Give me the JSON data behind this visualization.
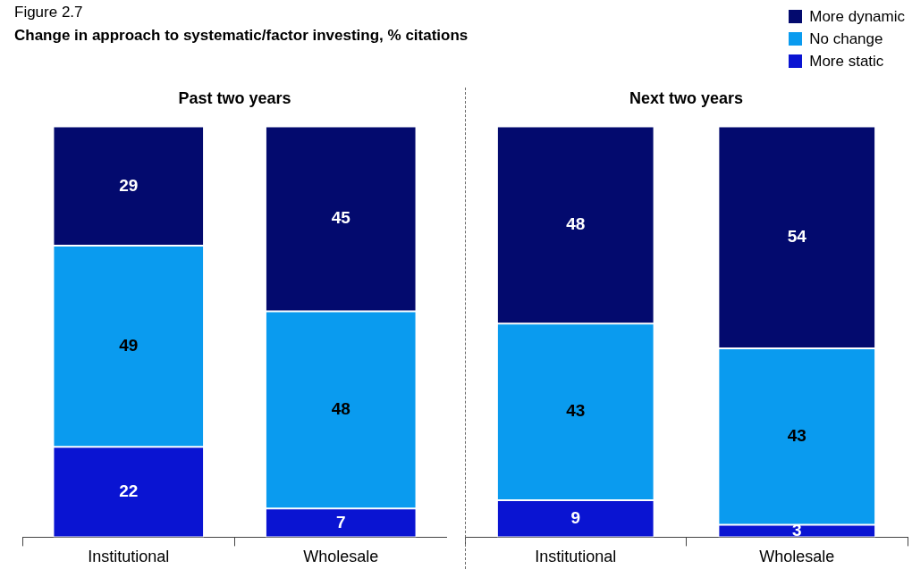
{
  "chart_data": [
    {
      "type": "other",
      "title": "Change in approach to systematic/factor investing, % citations",
      "annotations": [
        "Figure 2.7"
      ]
    },
    {
      "type": "bar",
      "title": "Past two years",
      "stacked": true,
      "data_labels": true,
      "legend": false,
      "grid": false,
      "tick_labels": "x",
      "categories": [
        "Institutional",
        "Wholesale"
      ],
      "series": [
        {
          "color": "#0a14d2",
          "values": [
            22,
            7
          ]
        },
        {
          "color": "#0a9bef",
          "values": [
            49,
            48
          ]
        },
        {
          "color": "#030a6e",
          "values": [
            29,
            45
          ]
        }
      ]
    },
    {
      "type": "bar",
      "title": "Next two years",
      "stacked": true,
      "data_labels": true,
      "legend": "top right",
      "grid": false,
      "tick_labels": "x",
      "categories": [
        "Institutional",
        "Wholesale"
      ],
      "series": [
        {
          "name": "More static",
          "color": "#0a14d2",
          "values": [
            9,
            3
          ]
        },
        {
          "name": "No change",
          "color": "#0a9bef",
          "values": [
            43,
            43
          ]
        },
        {
          "name": "More dynamic",
          "color": "#030a6e",
          "values": [
            48,
            54
          ]
        }
      ]
    }
  ]
}
